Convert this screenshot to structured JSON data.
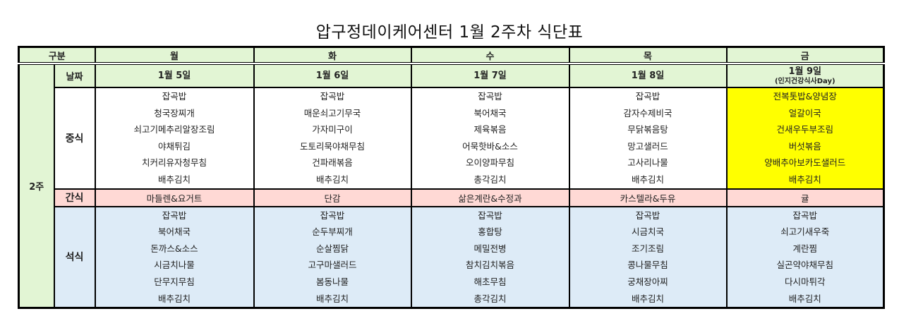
{
  "title": "압구정데이케어센터 1월  2주차 식단표",
  "header": {
    "category": "구분",
    "days": [
      "월",
      "화",
      "수",
      "목",
      "금"
    ]
  },
  "week_label": "2주",
  "row_labels": {
    "date": "날짜",
    "lunch": "중식",
    "snack": "간식",
    "dinner": "석식"
  },
  "dates": [
    "1월 5일",
    "1월 6일",
    "1월 7일",
    "1월 8일",
    "1월 9일"
  ],
  "date_notes": [
    "",
    "",
    "",
    "",
    "(인지건강식사Day)"
  ],
  "highlight_color": "#ffff00",
  "lunch": [
    [
      "잡곡밥",
      "청국장찌개",
      "쇠고기메추리알장조림",
      "야채튀김",
      "치커리유자청무침",
      "배추김치"
    ],
    [
      "잡곡밥",
      "매운쇠고기무국",
      "가자미구이",
      "도토리묵야채무침",
      "건파래볶음",
      "배추김치"
    ],
    [
      "잡곡밥",
      "북어채국",
      "제육볶음",
      "어묵핫바&소스",
      "오이양파무침",
      "총각김치"
    ],
    [
      "잡곡밥",
      "감자수제비국",
      "무닭볶음탕",
      "망고샐러드",
      "고사리나물",
      "배추김치"
    ],
    [
      "전복톳밥&양념장",
      "얼갈이국",
      "건새우두부조림",
      "버섯볶음",
      "양배추아보카도샐러드",
      "배추김치"
    ]
  ],
  "snack": [
    "마들렌&요거트",
    "단감",
    "삶은계란&수정과",
    "카스텔라&두유",
    "귤"
  ],
  "dinner": [
    [
      "잡곡밥",
      "북어채국",
      "돈까스&소스",
      "시금치나물",
      "단무지무침",
      "배추김치"
    ],
    [
      "잡곡밥",
      "순두부찌개",
      "순살찜닭",
      "고구마샐러드",
      "봄동나물",
      "배추김치"
    ],
    [
      "잡곡밥",
      "홍합탕",
      "메밀전병",
      "참치김치볶음",
      "해초무침",
      "총각김치"
    ],
    [
      "잡곡밥",
      "시금치국",
      "조기조림",
      "콩나물무침",
      "궁채장아찌",
      "배추김치"
    ],
    [
      "잡곡밥",
      "쇠고기새우죽",
      "계란찜",
      "실곤약야채무침",
      "다시마튀각",
      "배추김치"
    ]
  ]
}
